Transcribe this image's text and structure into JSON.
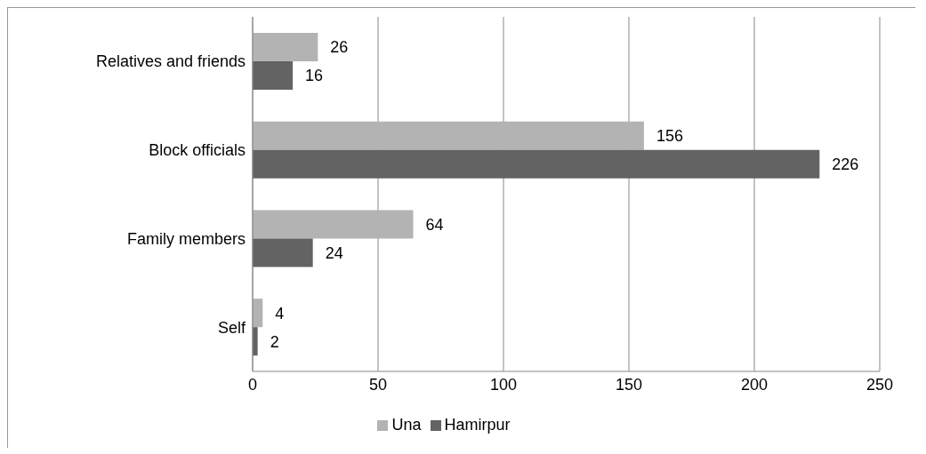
{
  "chart_data": {
    "type": "bar",
    "orientation": "horizontal",
    "categories": [
      "Relatives and friends",
      "Block officials",
      "Family members",
      "Self"
    ],
    "series": [
      {
        "name": "Una",
        "color": "#b3b3b3",
        "values": [
          26,
          156,
          64,
          4
        ]
      },
      {
        "name": "Hamirpur",
        "color": "#636363",
        "values": [
          16,
          226,
          24,
          2
        ]
      }
    ],
    "xlim": [
      0,
      250
    ],
    "xticks": [
      0,
      50,
      100,
      150,
      200,
      250
    ],
    "grid": "x",
    "legend": "bottom",
    "data_labels": true
  }
}
